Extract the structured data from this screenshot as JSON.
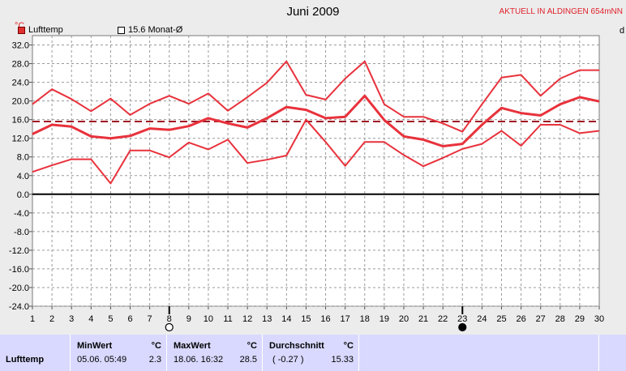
{
  "header": {
    "title": "Juni 2009",
    "station": "AKTUELL IN ALDINGEN 654mNN",
    "unit_label": "°C",
    "right_unit_label": "d"
  },
  "legend": [
    {
      "label": "Lufttemp",
      "color": "#e03030",
      "style": "filled"
    },
    {
      "label": "15.6 Monat-Ø",
      "color": "#ffffff",
      "style": "outline"
    }
  ],
  "colors": {
    "series": "#e8323c",
    "reference": "#a01824",
    "zero_line": "#000000",
    "grid": "#9a9a9a",
    "plot_bg": "#ffffff",
    "frame_bg": "#ececec",
    "panel_bg": "#c9c9ff"
  },
  "moon_phases": [
    {
      "day": 8,
      "icon": "full-moon-icon"
    },
    {
      "day": 23,
      "icon": "new-moon-icon"
    }
  ],
  "chart_data": {
    "type": "line",
    "x": [
      1,
      2,
      3,
      4,
      5,
      6,
      7,
      8,
      9,
      10,
      11,
      12,
      13,
      14,
      15,
      16,
      17,
      18,
      19,
      20,
      21,
      22,
      23,
      24,
      25,
      26,
      27,
      28,
      29,
      30
    ],
    "ylim": [
      -24,
      34
    ],
    "yticks": [
      "32.0",
      "28.0",
      "24.0",
      "20.0",
      "16.0",
      "12.0",
      "8.0",
      "4.0",
      "0.0",
      "-4.0",
      "-8.0",
      "-12.0",
      "-16.0",
      "-20.0",
      "-24.0"
    ],
    "grid": true,
    "reference_line": 15.6,
    "series": [
      {
        "role": "max",
        "values": [
          19.3,
          22.5,
          20.4,
          17.8,
          20.5,
          17.0,
          19.4,
          21.1,
          19.4,
          21.6,
          17.9,
          20.8,
          23.9,
          28.5,
          21.3,
          20.3,
          24.8,
          28.5,
          19.3,
          16.6,
          16.6,
          15.2,
          13.4,
          19.3,
          25.0,
          25.6,
          21.1,
          24.8,
          26.6,
          26.6
        ]
      },
      {
        "role": "mean",
        "values": [
          12.9,
          14.9,
          14.5,
          12.4,
          12.0,
          12.5,
          14.1,
          13.8,
          14.6,
          16.3,
          15.2,
          14.3,
          16.3,
          18.7,
          18.1,
          16.3,
          16.6,
          21.1,
          15.9,
          12.4,
          11.7,
          10.3,
          10.8,
          14.9,
          18.5,
          17.4,
          16.9,
          19.3,
          20.8,
          19.9
        ]
      },
      {
        "role": "min",
        "values": [
          4.8,
          6.2,
          7.5,
          7.5,
          2.3,
          9.4,
          9.4,
          7.9,
          11.1,
          9.6,
          11.7,
          6.7,
          7.4,
          8.3,
          16.0,
          11.2,
          6.1,
          11.2,
          11.2,
          8.4,
          6.0,
          7.8,
          9.7,
          10.8,
          13.6,
          10.4,
          14.9,
          14.9,
          13.1,
          13.6
        ]
      }
    ]
  },
  "stats_panel": {
    "row_label": "Lufttemp",
    "unit": "°C",
    "min": {
      "header": "MinWert",
      "datetime": "05.06.  05:49",
      "value": "2.3"
    },
    "max": {
      "header": "MaxWert",
      "datetime": "18.06.  16:32",
      "value": "28.5"
    },
    "avg": {
      "header": "Durchschnitt",
      "deviation": "( -0.27 )",
      "value": "15.33"
    }
  }
}
